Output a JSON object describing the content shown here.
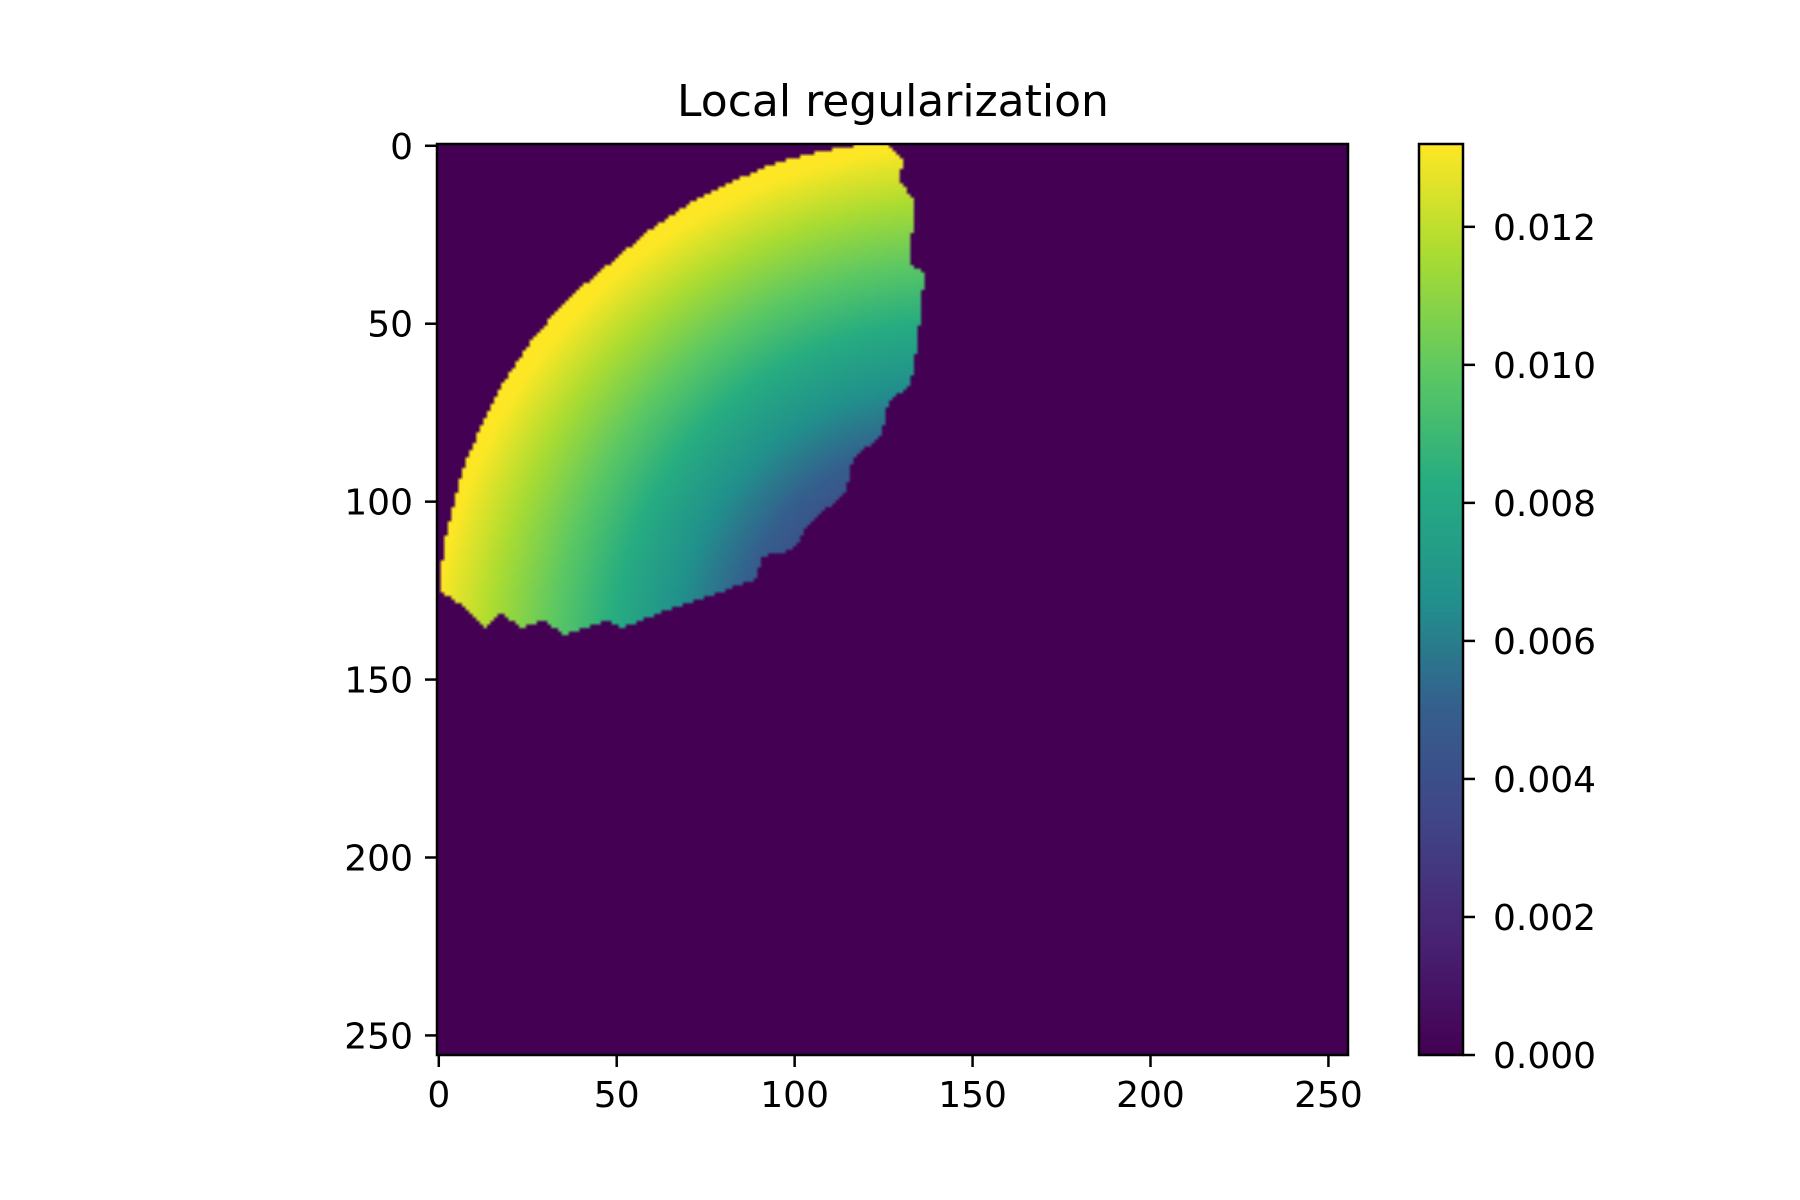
{
  "chart_data": {
    "type": "heatmap",
    "title": "Local regularization",
    "xlabel": "",
    "ylabel": "",
    "x_ticks": [
      0,
      50,
      100,
      150,
      200,
      250
    ],
    "y_ticks": [
      0,
      50,
      100,
      150,
      200,
      250
    ],
    "xlim": [
      0,
      255
    ],
    "ylim": [
      255,
      0
    ],
    "y_inverted": true,
    "grid": false,
    "colormap": "viridis",
    "colorbar": {
      "min": 0.0,
      "max": 0.0132,
      "ticks": [
        "0.000",
        "0.002",
        "0.004",
        "0.006",
        "0.008",
        "0.010",
        "0.012"
      ],
      "tick_values": [
        0.0,
        0.002,
        0.004,
        0.006,
        0.008,
        0.01,
        0.012
      ]
    },
    "background_value": 0.0,
    "region": {
      "description_values": "nonzero region in upper-left quadrant",
      "outer_arc_value": 0.0132,
      "inner_edge_value": 0.0,
      "boundary_points": [
        [
          1,
          122
        ],
        [
          2,
          112
        ],
        [
          4,
          104
        ],
        [
          7,
          92
        ],
        [
          12,
          80
        ],
        [
          18,
          68
        ],
        [
          26,
          56
        ],
        [
          36,
          44
        ],
        [
          48,
          34
        ],
        [
          60,
          24
        ],
        [
          72,
          16
        ],
        [
          84,
          10
        ],
        [
          96,
          5
        ],
        [
          108,
          2
        ],
        [
          120,
          0
        ],
        [
          126,
          0
        ],
        [
          131,
          4
        ],
        [
          130,
          10
        ],
        [
          134,
          16
        ],
        [
          133,
          34
        ],
        [
          137,
          36
        ],
        [
          135,
          56
        ],
        [
          133,
          68
        ],
        [
          127,
          72
        ],
        [
          125,
          82
        ],
        [
          117,
          88
        ],
        [
          115,
          98
        ],
        [
          105,
          106
        ],
        [
          100,
          114
        ],
        [
          91,
          116
        ],
        [
          90,
          122
        ],
        [
          74,
          128
        ],
        [
          62,
          132
        ],
        [
          52,
          136
        ],
        [
          48,
          134
        ],
        [
          36,
          138
        ],
        [
          30,
          134
        ],
        [
          24,
          136
        ],
        [
          18,
          132
        ],
        [
          14,
          136
        ],
        [
          8,
          130
        ],
        [
          1,
          126
        ]
      ]
    }
  }
}
